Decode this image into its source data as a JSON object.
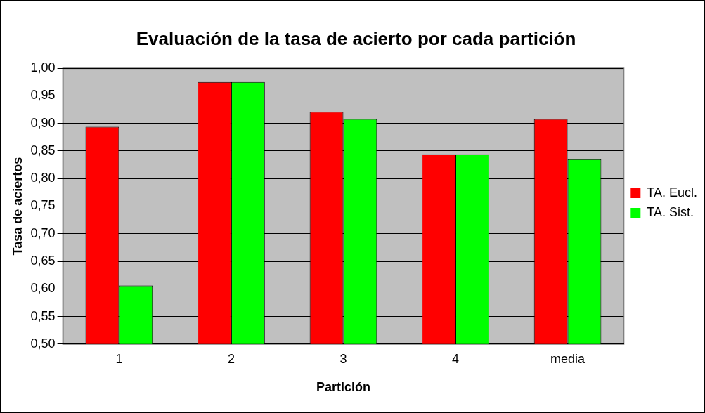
{
  "chart_data": {
    "type": "bar",
    "title": "Evaluación de la tasa de acierto por cada partición",
    "xlabel": "Partición",
    "ylabel": "Tasa de aciertos",
    "categories": [
      "1",
      "2",
      "3",
      "4",
      "media"
    ],
    "series": [
      {
        "name": "TA. Eucl.",
        "color": "#ff0000",
        "values": [
          0.894,
          0.975,
          0.921,
          0.844,
          0.908
        ]
      },
      {
        "name": "TA. Sist.",
        "color": "#00ff00",
        "values": [
          0.606,
          0.975,
          0.908,
          0.844,
          0.835
        ]
      }
    ],
    "ylim": [
      0.5,
      1.0
    ],
    "yticks": [
      {
        "value": 0.5,
        "label": "0,50"
      },
      {
        "value": 0.55,
        "label": "0,55"
      },
      {
        "value": 0.6,
        "label": "0,60"
      },
      {
        "value": 0.65,
        "label": "0,65"
      },
      {
        "value": 0.7,
        "label": "0,70"
      },
      {
        "value": 0.75,
        "label": "0,75"
      },
      {
        "value": 0.8,
        "label": "0,80"
      },
      {
        "value": 0.85,
        "label": "0,85"
      },
      {
        "value": 0.9,
        "label": "0,90"
      },
      {
        "value": 0.95,
        "label": "0,95"
      },
      {
        "value": 1.0,
        "label": "1,00"
      }
    ],
    "grid": "y",
    "legend": "right"
  }
}
